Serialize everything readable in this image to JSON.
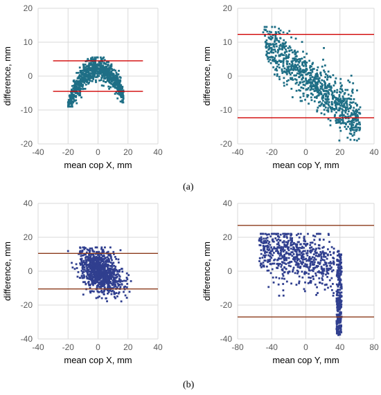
{
  "panel_labels": {
    "a": "(a)",
    "b": "(b)"
  },
  "chart_data": [
    {
      "type": "scatter",
      "xlabel": "mean cop X, mm",
      "ylabel": "difference, mm",
      "xlim": [
        -40,
        40
      ],
      "ylim": [
        -20,
        20
      ],
      "xticks": [
        -40,
        -20,
        0,
        20,
        40
      ],
      "yticks": [
        -20,
        -10,
        0,
        10,
        20
      ],
      "grid": true,
      "reference_lines": [
        4.5,
        -4.5
      ],
      "point_color": "#1f6f86",
      "line_color": "#d00000",
      "cloud_shape": "arch",
      "series": [
        {
          "x_range": [
            -20,
            17
          ],
          "y_center": 0,
          "y_spread": 4
        }
      ]
    },
    {
      "type": "scatter",
      "xlabel": "mean cop Y, mm",
      "ylabel": "difference, mm",
      "xlim": [
        -40,
        40
      ],
      "ylim": [
        -20,
        20
      ],
      "xticks": [
        -40,
        -20,
        0,
        20,
        40
      ],
      "yticks": [
        -20,
        -10,
        0,
        10,
        20
      ],
      "grid": true,
      "reference_lines": [
        12.3,
        -12.3
      ],
      "point_color": "#1f6f86",
      "line_color": "#d00000",
      "cloud_shape": "diagonal",
      "series": [
        {
          "x_range": [
            -27,
            35
          ],
          "y_center": 0,
          "y_spread": 4
        }
      ]
    },
    {
      "type": "scatter",
      "xlabel": "mean cop X, mm",
      "ylabel": "difference, mm",
      "xlim": [
        -40,
        40
      ],
      "ylim": [
        -40,
        40
      ],
      "xticks": [
        -40,
        -20,
        0,
        20,
        40
      ],
      "yticks": [
        -40,
        -20,
        0,
        20,
        40
      ],
      "grid": true,
      "reference_lines": [
        10.5,
        -10.5
      ],
      "point_color": "#303f8f",
      "line_color": "#8b3a1a",
      "cloud_shape": "blob",
      "series": [
        {
          "x_range": [
            -20,
            22
          ],
          "y_center": 0,
          "y_spread": 8
        }
      ]
    },
    {
      "type": "scatter",
      "xlabel": "mean cop Y, mm",
      "ylabel": "difference, mm",
      "xlim": [
        -80,
        80
      ],
      "ylim": [
        -40,
        40
      ],
      "xticks": [
        -80,
        -40,
        0,
        40,
        80
      ],
      "yticks": [
        -40,
        -20,
        0,
        20,
        40
      ],
      "grid": true,
      "reference_lines": [
        27,
        -27
      ],
      "point_color": "#303f8f",
      "line_color": "#8b3a1a",
      "cloud_shape": "wide",
      "series": [
        {
          "x_range": [
            -55,
            42
          ],
          "y_center": 0,
          "y_spread": 10
        }
      ]
    }
  ]
}
